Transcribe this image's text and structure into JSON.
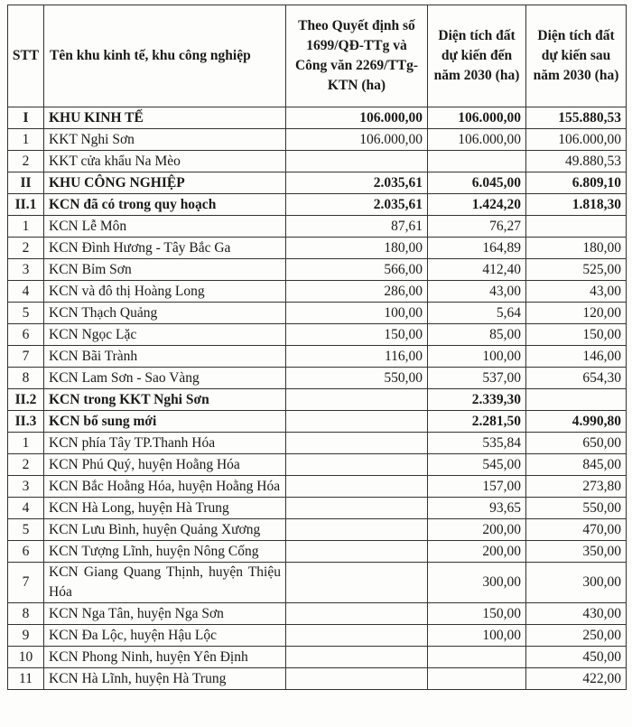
{
  "headers": {
    "stt": "STT",
    "name": "Tên khu kinh tế, khu công nghiệp",
    "col1": "Theo Quyết định số 1699/QĐ-TTg và Công văn 2269/TTg-KTN (ha)",
    "col2": "Diện tích đất dự kiến đến năm 2030 (ha)",
    "col3": "Diện tích đất dự kiến sau năm 2030 (ha)"
  },
  "rows": [
    {
      "stt": "I",
      "name": "KHU KINH TẾ",
      "c1": "106.000,00",
      "c2": "106.000,00",
      "c3": "155.880,53",
      "bold": true
    },
    {
      "stt": "1",
      "name": "KKT Nghi Sơn",
      "c1": "106.000,00",
      "c2": "106.000,00",
      "c3": "106.000,00"
    },
    {
      "stt": "2",
      "name": "KKT cửa khẩu Na Mèo",
      "c1": "",
      "c2": "",
      "c3": "49.880,53"
    },
    {
      "stt": "II",
      "name": "KHU CÔNG NGHIỆP",
      "c1": "2.035,61",
      "c2": "6.045,00",
      "c3": "6.809,10",
      "bold": true
    },
    {
      "stt": "II.1",
      "name": "KCN đã có trong quy hoạch",
      "c1": "2.035,61",
      "c2": "1.424,20",
      "c3": "1.818,30",
      "bold": true
    },
    {
      "stt": "1",
      "name": "KCN Lễ Môn",
      "c1": "87,61",
      "c2": "76,27",
      "c3": ""
    },
    {
      "stt": "2",
      "name": "KCN Đình Hương - Tây Bắc Ga",
      "c1": "180,00",
      "c2": "164,89",
      "c3": "180,00"
    },
    {
      "stt": "3",
      "name": "KCN Bỉm Sơn",
      "c1": "566,00",
      "c2": "412,40",
      "c3": "525,00"
    },
    {
      "stt": "4",
      "name": "KCN và đô thị Hoàng Long",
      "c1": "286,00",
      "c2": "43,00",
      "c3": "43,00"
    },
    {
      "stt": "5",
      "name": "KCN Thạch Quảng",
      "c1": "100,00",
      "c2": "5,64",
      "c3": "120,00"
    },
    {
      "stt": "6",
      "name": "KCN Ngọc Lặc",
      "c1": "150,00",
      "c2": "85,00",
      "c3": "150,00"
    },
    {
      "stt": "7",
      "name": "KCN Bãi Trành",
      "c1": "116,00",
      "c2": "100,00",
      "c3": "146,00"
    },
    {
      "stt": "8",
      "name": "KCN Lam Sơn - Sao Vàng",
      "c1": "550,00",
      "c2": "537,00",
      "c3": "654,30"
    },
    {
      "stt": "II.2",
      "name": "KCN trong KKT Nghi Sơn",
      "c1": "",
      "c2": "2.339,30",
      "c3": "",
      "bold": true
    },
    {
      "stt": "II.3",
      "name": "KCN bổ sung mới",
      "c1": "",
      "c2": "2.281,50",
      "c3": "4.990,80",
      "bold": true
    },
    {
      "stt": "1",
      "name": "KCN phía Tây TP.Thanh Hóa",
      "c1": "",
      "c2": "535,84",
      "c3": "650,00"
    },
    {
      "stt": "2",
      "name": "KCN Phú Quý, huyện Hoằng Hóa",
      "c1": "",
      "c2": "545,00",
      "c3": "845,00"
    },
    {
      "stt": "3",
      "name": "KCN Bắc Hoằng Hóa, huyện Hoằng Hóa",
      "c1": "",
      "c2": "157,00",
      "c3": "273,80"
    },
    {
      "stt": "4",
      "name": "KCN Hà Long, huyện Hà Trung",
      "c1": "",
      "c2": "93,65",
      "c3": "550,00"
    },
    {
      "stt": "5",
      "name": "KCN Lưu Bình, huyện Quảng Xương",
      "c1": "",
      "c2": "200,00",
      "c3": "470,00"
    },
    {
      "stt": "6",
      "name": "KCN Tượng Lĩnh, huyện Nông Cống",
      "c1": "",
      "c2": "200,00",
      "c3": "350,00"
    },
    {
      "stt": "7",
      "name": "KCN Giang Quang Thịnh, huyện Thiệu Hóa",
      "c1": "",
      "c2": "300,00",
      "c3": "300,00"
    },
    {
      "stt": "8",
      "name": "KCN Nga Tân, huyện Nga Sơn",
      "c1": "",
      "c2": "150,00",
      "c3": "430,00"
    },
    {
      "stt": "9",
      "name": "KCN Đa Lộc, huyện Hậu Lộc",
      "c1": "",
      "c2": "100,00",
      "c3": "250,00"
    },
    {
      "stt": "10",
      "name": "KCN Phong Ninh, huyện Yên Định",
      "c1": "",
      "c2": "",
      "c3": "450,00"
    },
    {
      "stt": "11",
      "name": "KCN Hà Lĩnh, huyện Hà Trung",
      "c1": "",
      "c2": "",
      "c3": "422,00"
    }
  ]
}
